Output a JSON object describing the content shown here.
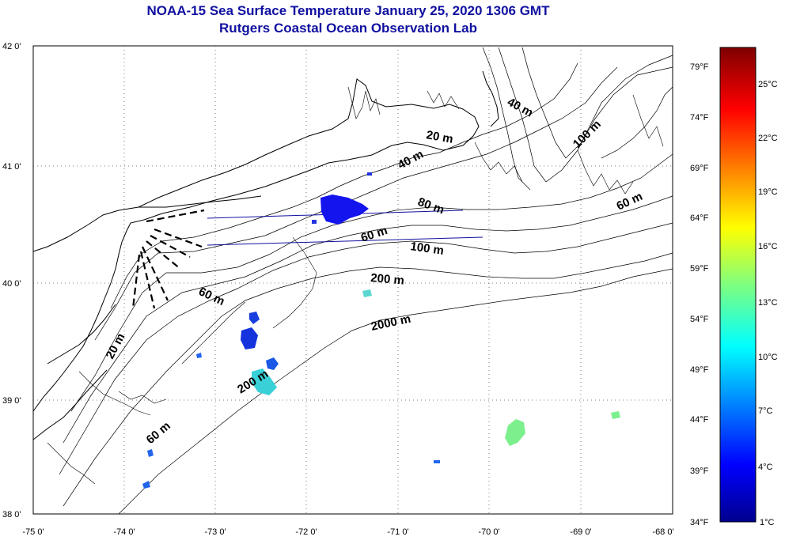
{
  "title": "NOAA-15 Sea Surface Temperature January 25, 2020 1306 GMT",
  "subtitle": "Rutgers Coastal Ocean Observation Lab",
  "lat_ticks": [
    "42 0'",
    "41 0'",
    "40 0'",
    "39 0'",
    "38 0'"
  ],
  "lon_ticks": [
    "-75 0'",
    "-74 0'",
    "-73 0'",
    "-72 0'",
    "-71 0'",
    "-70 0'",
    "-69 0'",
    "-68 0'"
  ],
  "depth_labels": [
    "40 m",
    "20 m",
    "40 m",
    "100 m",
    "60 m",
    "60 m",
    "80 m",
    "100 m",
    "200 m",
    "60 m",
    "2000 m",
    "20 m",
    "200 m",
    "60 m"
  ],
  "colorbar": {
    "fahrenheit": [
      "79°F",
      "74°F",
      "69°F",
      "64°F",
      "59°F",
      "54°F",
      "49°F",
      "44°F",
      "39°F",
      "34°F"
    ],
    "celsius": [
      "25°C",
      "22°C",
      "19°C",
      "16°C",
      "13°C",
      "10°C",
      "7°C",
      "4°C",
      "1°C"
    ]
  }
}
